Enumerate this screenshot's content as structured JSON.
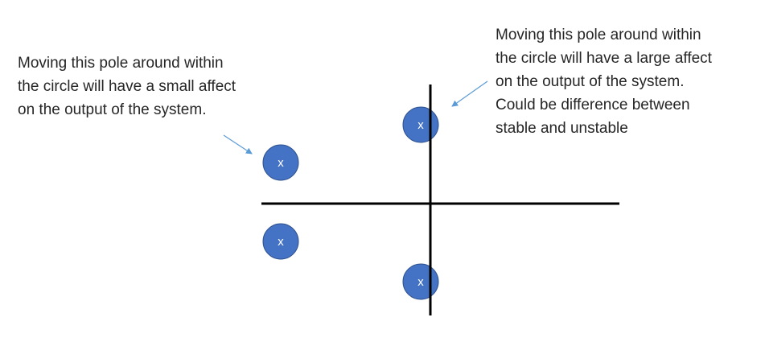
{
  "annotations": {
    "left": {
      "lines": [
        "Moving this pole around within",
        "the circle will have a small affect",
        "on the output of the system."
      ]
    },
    "right": {
      "lines": [
        "Moving this pole around within",
        "the circle will have a large affect",
        "on the output of the system.",
        "Could be difference between",
        "stable and unstable"
      ]
    }
  },
  "poles": [
    {
      "label": "x"
    },
    {
      "label": "x"
    },
    {
      "label": "x"
    },
    {
      "label": "x"
    }
  ],
  "colors": {
    "pole_fill": "#4472C4",
    "pole_stroke": "#2F528F",
    "axis": "#000000",
    "arrow": "#5B9BD5",
    "text": "#262626"
  }
}
